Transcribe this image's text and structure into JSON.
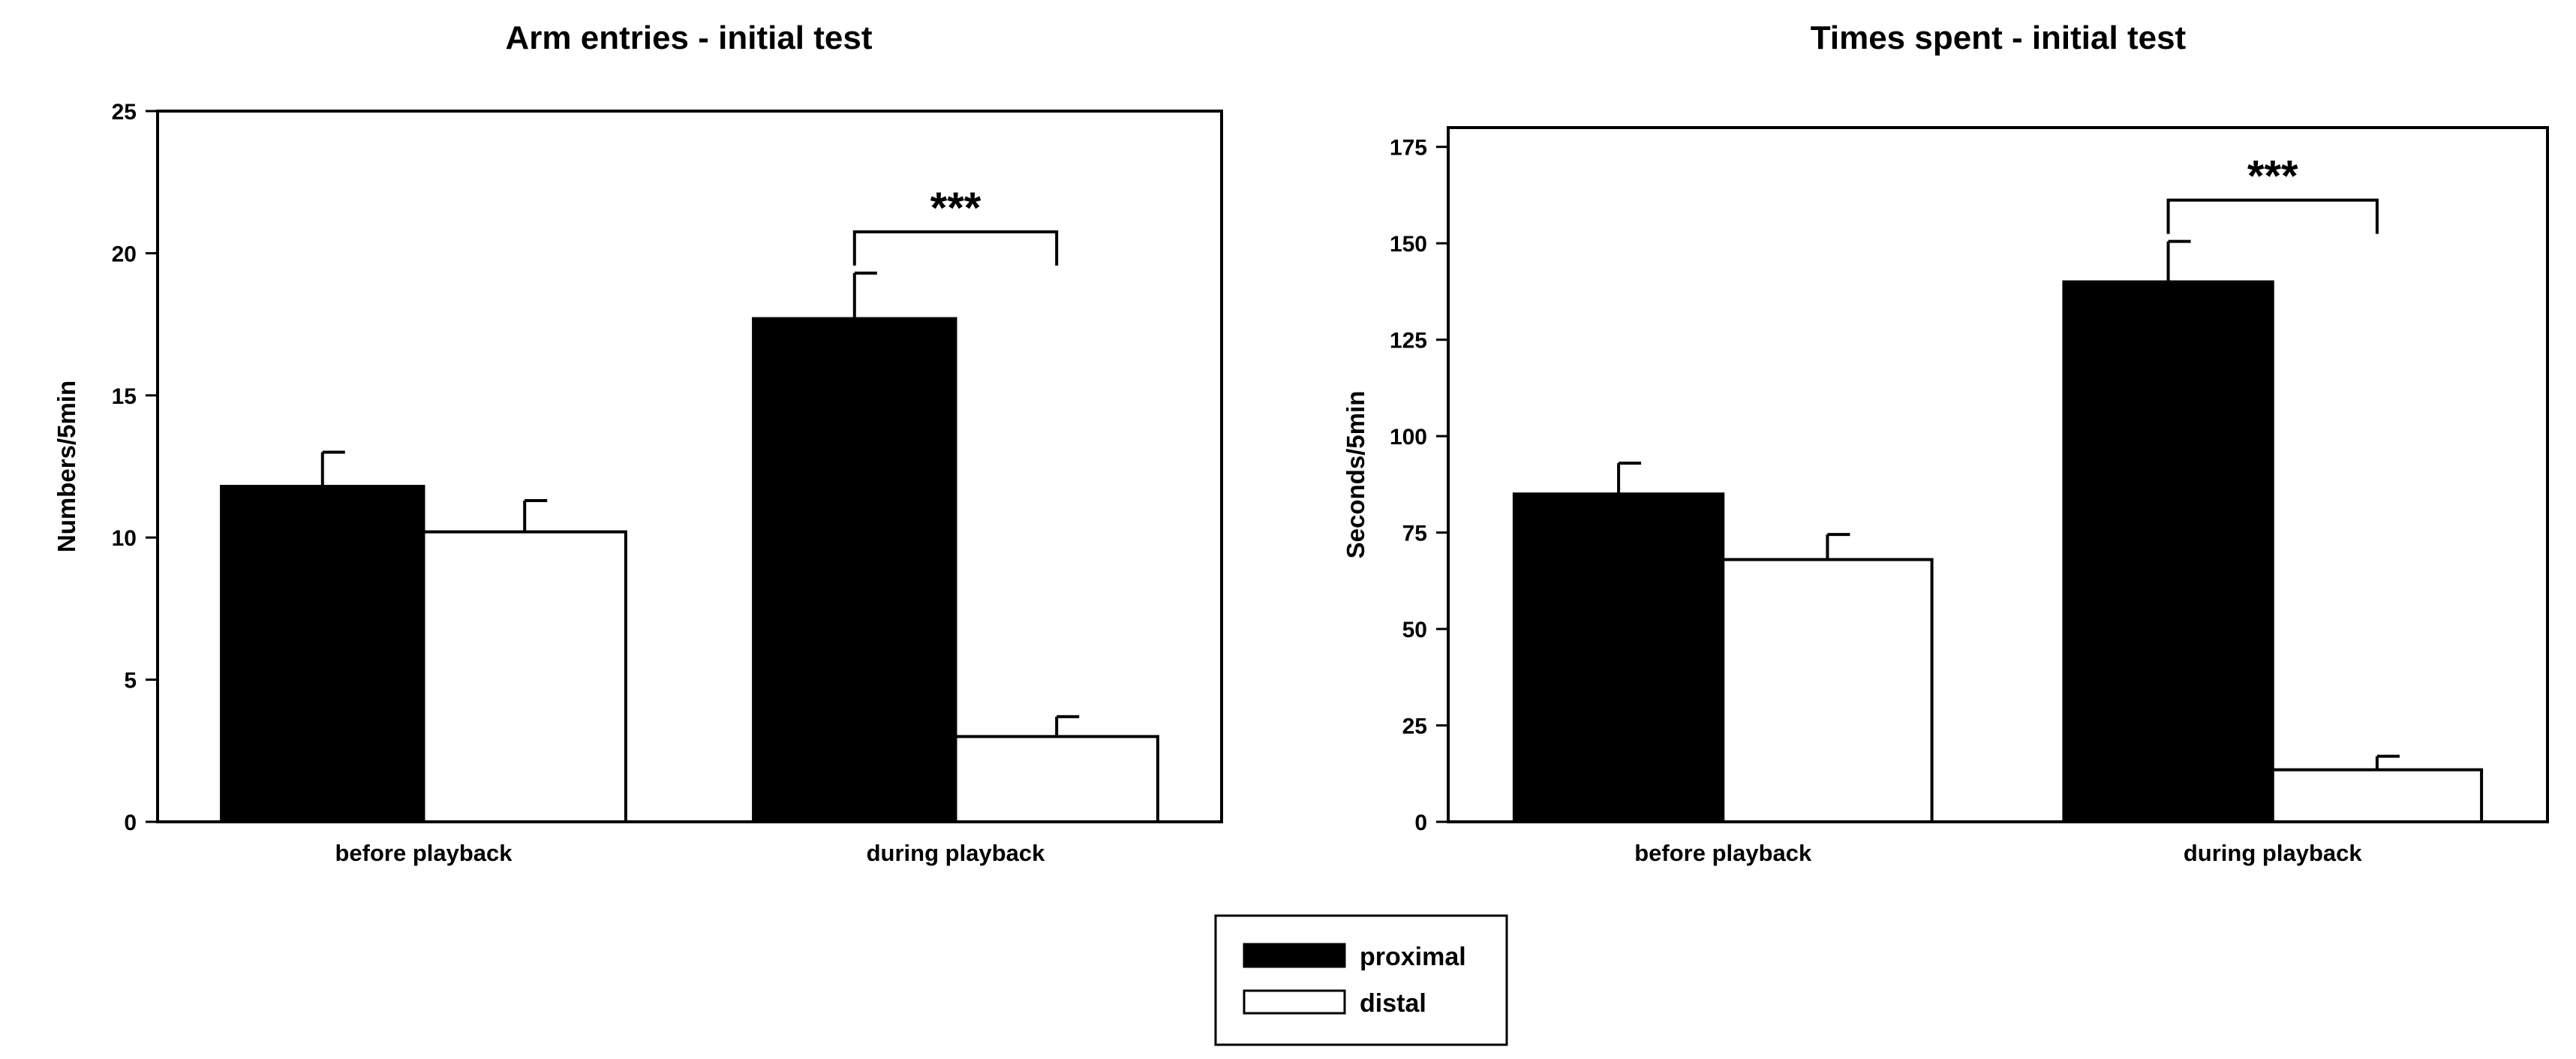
{
  "chart_data": [
    {
      "type": "bar",
      "title": "Arm entries - initial test",
      "xlabel": "",
      "ylabel": "Numbers/5min",
      "ylim": [
        0,
        25
      ],
      "yticks": [
        0,
        5,
        10,
        15,
        20,
        25
      ],
      "categories": [
        "before playback",
        "during playback"
      ],
      "series": [
        {
          "name": "proximal",
          "values": [
            11.8,
            17.7
          ],
          "errors": [
            1.2,
            1.6
          ],
          "color": "#000000"
        },
        {
          "name": "distal",
          "values": [
            10.2,
            3.0
          ],
          "errors": [
            1.1,
            0.7
          ],
          "color": "#ffffff"
        }
      ],
      "significance": [
        {
          "category": "during playback",
          "label": "***"
        }
      ]
    },
    {
      "type": "bar",
      "title": "Times spent - initial test",
      "xlabel": "",
      "ylabel": "Seconds/5min",
      "ylim": [
        0,
        180
      ],
      "yticks": [
        0,
        25,
        50,
        75,
        100,
        125,
        150,
        175
      ],
      "categories": [
        "before playback",
        "during playback"
      ],
      "series": [
        {
          "name": "proximal",
          "values": [
            85,
            140
          ],
          "errors": [
            8,
            10.5
          ],
          "color": "#000000"
        },
        {
          "name": "distal",
          "values": [
            68,
            13.5
          ],
          "errors": [
            6.5,
            3.5
          ],
          "color": "#ffffff"
        }
      ],
      "significance": [
        {
          "category": "during playback",
          "label": "***"
        }
      ]
    }
  ],
  "legend": {
    "entries": [
      {
        "name": "proximal",
        "color": "#000000"
      },
      {
        "name": "distal",
        "color": "#ffffff"
      }
    ],
    "placement": "bottom-center"
  }
}
